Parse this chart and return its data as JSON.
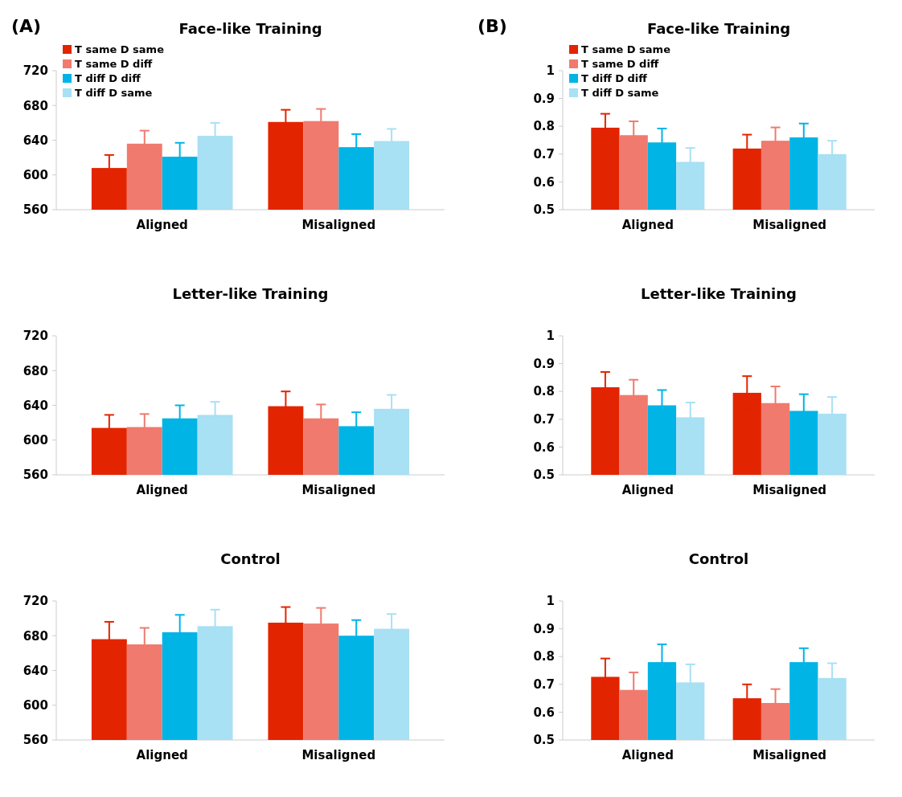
{
  "chart_data": [
    {
      "type": "bar",
      "title": "Face-like Training",
      "annotations": [
        "(A)"
      ],
      "categories": [
        "Aligned",
        "Misaligned"
      ],
      "ylim": [
        560,
        720
      ],
      "yticks": [
        560,
        600,
        640,
        680,
        720
      ],
      "legend": "top left",
      "series": [
        {
          "name": "T same D same",
          "color": "#e32400",
          "values": [
            608,
            661
          ],
          "errors": [
            15,
            14
          ]
        },
        {
          "name": "T same D diff",
          "color": "#f07a6e",
          "values": [
            636,
            662
          ],
          "errors": [
            15,
            14
          ]
        },
        {
          "name": "T diff D diff",
          "color": "#00b4e6",
          "values": [
            621,
            632
          ],
          "errors": [
            16,
            15
          ]
        },
        {
          "name": "T diff D same",
          "color": "#a8e0f4",
          "values": [
            645,
            639
          ],
          "errors": [
            15,
            14
          ]
        }
      ]
    },
    {
      "type": "bar",
      "title": "Face-like Training",
      "annotations": [
        "(B)"
      ],
      "categories": [
        "Aligned",
        "Misaligned"
      ],
      "ylim": [
        0.5,
        1
      ],
      "yticks": [
        0.5,
        0.6,
        0.7,
        0.8,
        0.9,
        1
      ],
      "legend": "top left",
      "series": [
        {
          "name": "T same D same",
          "color": "#e32400",
          "values": [
            0.795,
            0.72
          ],
          "errors": [
            0.05,
            0.05
          ]
        },
        {
          "name": "T same D diff",
          "color": "#f07a6e",
          "values": [
            0.768,
            0.748
          ],
          "errors": [
            0.05,
            0.048
          ]
        },
        {
          "name": "T diff D diff",
          "color": "#00b4e6",
          "values": [
            0.742,
            0.76
          ],
          "errors": [
            0.05,
            0.05
          ]
        },
        {
          "name": "T diff D same",
          "color": "#a8e0f4",
          "values": [
            0.672,
            0.7
          ],
          "errors": [
            0.05,
            0.048
          ]
        }
      ]
    },
    {
      "type": "bar",
      "title": "Letter-like Training",
      "categories": [
        "Aligned",
        "Misaligned"
      ],
      "ylim": [
        560,
        720
      ],
      "yticks": [
        560,
        600,
        640,
        680,
        720
      ],
      "series": [
        {
          "color": "#e32400",
          "values": [
            614,
            639
          ],
          "errors": [
            15,
            17
          ]
        },
        {
          "color": "#f07a6e",
          "values": [
            615,
            625
          ],
          "errors": [
            15,
            16
          ]
        },
        {
          "color": "#00b4e6",
          "values": [
            625,
            616
          ],
          "errors": [
            15,
            16
          ]
        },
        {
          "color": "#a8e0f4",
          "values": [
            629,
            636
          ],
          "errors": [
            15,
            16
          ]
        }
      ]
    },
    {
      "type": "bar",
      "title": "Letter-like Training",
      "categories": [
        "Aligned",
        "Misaligned"
      ],
      "ylim": [
        0.5,
        1
      ],
      "yticks": [
        0.5,
        0.6,
        0.7,
        0.8,
        0.9,
        1
      ],
      "series": [
        {
          "color": "#e32400",
          "values": [
            0.815,
            0.795
          ],
          "errors": [
            0.055,
            0.06
          ]
        },
        {
          "color": "#f07a6e",
          "values": [
            0.787,
            0.758
          ],
          "errors": [
            0.055,
            0.06
          ]
        },
        {
          "color": "#00b4e6",
          "values": [
            0.75,
            0.73
          ],
          "errors": [
            0.055,
            0.06
          ]
        },
        {
          "color": "#a8e0f4",
          "values": [
            0.707,
            0.72
          ],
          "errors": [
            0.053,
            0.06
          ]
        }
      ]
    },
    {
      "type": "bar",
      "title": "Control",
      "categories": [
        "Aligned",
        "Misaligned"
      ],
      "ylim": [
        560,
        720
      ],
      "yticks": [
        560,
        600,
        640,
        680,
        720
      ],
      "series": [
        {
          "color": "#e32400",
          "values": [
            676,
            695
          ],
          "errors": [
            20,
            18
          ]
        },
        {
          "color": "#f07a6e",
          "values": [
            670,
            694
          ],
          "errors": [
            19,
            18
          ]
        },
        {
          "color": "#00b4e6",
          "values": [
            684,
            680
          ],
          "errors": [
            20,
            18
          ]
        },
        {
          "color": "#a8e0f4",
          "values": [
            691,
            688
          ],
          "errors": [
            19,
            17
          ]
        }
      ]
    },
    {
      "type": "bar",
      "title": "Control",
      "categories": [
        "Aligned",
        "Misaligned"
      ],
      "ylim": [
        0.5,
        1
      ],
      "yticks": [
        0.5,
        0.6,
        0.7,
        0.8,
        0.9,
        1
      ],
      "series": [
        {
          "color": "#e32400",
          "values": [
            0.727,
            0.65
          ],
          "errors": [
            0.066,
            0.05
          ]
        },
        {
          "color": "#f07a6e",
          "values": [
            0.68,
            0.633
          ],
          "errors": [
            0.063,
            0.05
          ]
        },
        {
          "color": "#00b4e6",
          "values": [
            0.78,
            0.78
          ],
          "errors": [
            0.064,
            0.05
          ]
        },
        {
          "color": "#a8e0f4",
          "values": [
            0.707,
            0.723
          ],
          "errors": [
            0.065,
            0.053
          ]
        }
      ]
    }
  ]
}
